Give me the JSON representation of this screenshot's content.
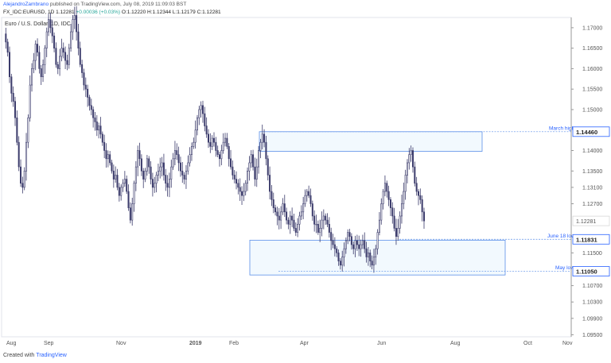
{
  "header": {
    "author": "AlejandroZambrano",
    "published": " published on TradingView.com, July 08, 2019 11:09:03 BST",
    "symbol_line": "FX_IDC:EURUSD, 1D 1.12281",
    "change": "+0.00036 (+0.03%)",
    "ohlc": "O:1.12220 H:1.12344 L:1.12179 C:1.12281"
  },
  "chart_title": "Euro / U.S. Dollar, 1D, IDC",
  "footer": {
    "created_with": "Created with",
    "brand": "TradingView"
  },
  "chart_data": {
    "type": "candlestick",
    "symbol": "FX_IDC:EURUSD",
    "timeframe": "1D",
    "ylim": [
      1.0945,
      1.1725
    ],
    "y_ticks": [
      1.17,
      1.165,
      1.16,
      1.155,
      1.15,
      1.14,
      1.135,
      1.131,
      1.127,
      1.115,
      1.107,
      1.103,
      1.099,
      1.095
    ],
    "y_tick_labels": [
      "1.17000",
      "1.16500",
      "1.16000",
      "1.15500",
      "1.15000",
      "1.14000",
      "1.13500",
      "1.13100",
      "1.12700",
      "1.11500",
      "1.10700",
      "1.10300",
      "1.09900",
      "1.09500"
    ],
    "x_tick_labels": [
      "Aug",
      "Sep",
      "Nov",
      "2019",
      "Feb",
      "Apr",
      "Jun",
      "Aug",
      "Oct",
      "Nov"
    ],
    "last_price": {
      "value": 1.12281,
      "label": "1.12281"
    },
    "price_tags": [
      {
        "value": 1.1446,
        "label": "1.14460",
        "annotation": "March high"
      },
      {
        "value": 1.11831,
        "label": "1.11831",
        "annotation": "June 18 low"
      },
      {
        "value": 1.1105,
        "label": "1.11050",
        "annotation": "May low"
      }
    ],
    "zones": [
      {
        "from": 1.1446,
        "to": 1.1398
      },
      {
        "from": 1.1181,
        "to": 1.1096
      }
    ],
    "close_path": [
      1.1685,
      1.1665,
      1.164,
      1.158,
      1.154,
      1.152,
      1.148,
      1.142,
      1.136,
      1.132,
      1.131,
      1.135,
      1.142,
      1.148,
      1.156,
      1.16,
      1.162,
      1.166,
      1.164,
      1.16,
      1.158,
      1.161,
      1.165,
      1.169,
      1.172,
      1.17,
      1.168,
      1.165,
      1.161,
      1.16,
      1.163,
      1.165,
      1.164,
      1.162,
      1.161,
      1.165,
      1.169,
      1.172,
      1.173,
      1.169,
      1.165,
      1.161,
      1.159,
      1.156,
      1.155,
      1.153,
      1.151,
      1.15,
      1.148,
      1.147,
      1.145,
      1.146,
      1.144,
      1.142,
      1.14,
      1.138,
      1.139,
      1.137,
      1.135,
      1.133,
      1.134,
      1.131,
      1.129,
      1.131,
      1.132,
      1.133,
      1.13,
      1.126,
      1.123,
      1.127,
      1.132,
      1.136,
      1.14,
      1.138,
      1.135,
      1.133,
      1.135,
      1.138,
      1.136,
      1.133,
      1.131,
      1.132,
      1.134,
      1.135,
      1.136,
      1.137,
      1.134,
      1.132,
      1.131,
      1.133,
      1.136,
      1.138,
      1.14,
      1.139,
      1.137,
      1.135,
      1.134,
      1.133,
      1.135,
      1.137,
      1.139,
      1.141,
      1.142,
      1.145,
      1.148,
      1.15,
      1.151,
      1.149,
      1.146,
      1.144,
      1.142,
      1.141,
      1.143,
      1.142,
      1.14,
      1.139,
      1.138,
      1.14,
      1.142,
      1.143,
      1.141,
      1.138,
      1.136,
      1.134,
      1.133,
      1.132,
      1.131,
      1.13,
      1.129,
      1.13,
      1.132,
      1.135,
      1.137,
      1.139,
      1.136,
      1.133,
      1.136,
      1.14,
      1.142,
      1.144,
      1.142,
      1.138,
      1.134,
      1.13,
      1.128,
      1.126,
      1.125,
      1.124,
      1.123,
      1.125,
      1.127,
      1.125,
      1.123,
      1.122,
      1.124,
      1.123,
      1.121,
      1.12,
      1.122,
      1.124,
      1.125,
      1.127,
      1.129,
      1.13,
      1.129,
      1.127,
      1.124,
      1.122,
      1.122,
      1.12,
      1.121,
      1.123,
      1.124,
      1.123,
      1.122,
      1.12,
      1.118,
      1.117,
      1.116,
      1.115,
      1.113,
      1.112,
      1.114,
      1.116,
      1.118,
      1.12,
      1.119,
      1.117,
      1.116,
      1.118,
      1.117,
      1.116,
      1.117,
      1.118,
      1.116,
      1.114,
      1.115,
      1.113,
      1.112,
      1.114,
      1.116,
      1.12,
      1.123,
      1.127,
      1.13,
      1.132,
      1.13,
      1.128,
      1.126,
      1.124,
      1.121,
      1.119,
      1.121,
      1.124,
      1.127,
      1.13,
      1.134,
      1.137,
      1.139,
      1.14,
      1.136,
      1.132,
      1.13,
      1.129,
      1.128,
      1.125,
      1.1228
    ]
  }
}
